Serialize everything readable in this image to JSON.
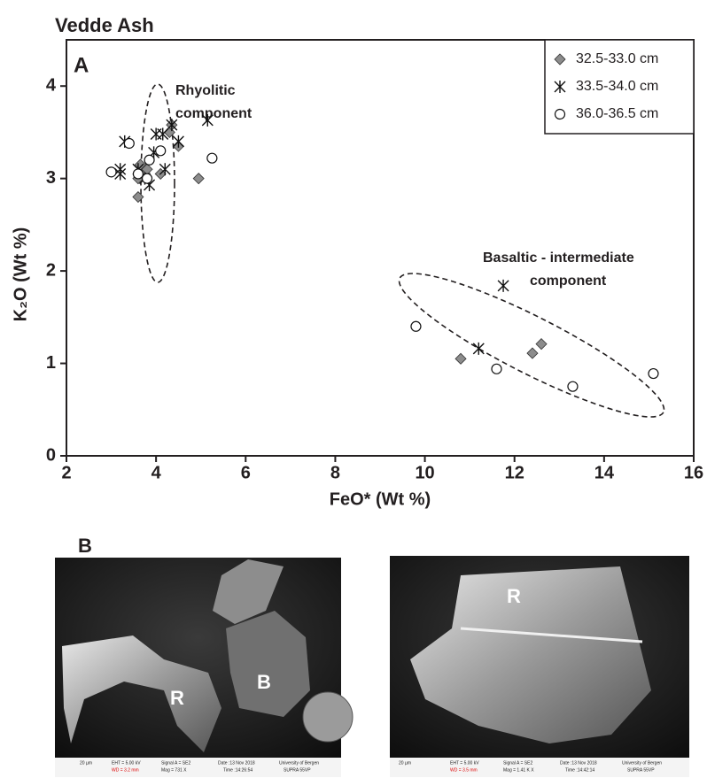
{
  "chart_data": {
    "type": "scatter",
    "title": "Vedde Ash",
    "panel_label": "A",
    "x_label": "FeO* (Wt %)",
    "y_label": "K₂O (Wt %)",
    "xlim": [
      2,
      16
    ],
    "xticks": [
      2,
      4,
      6,
      8,
      10,
      12,
      14,
      16
    ],
    "ylim": [
      0,
      4.5
    ],
    "yticks": [
      0,
      1,
      2,
      3,
      4
    ],
    "legend_position": "upper right",
    "annotations": [
      "Rhyolitic",
      "component",
      "Basaltic - intermediate",
      "component"
    ],
    "series": [
      {
        "name": "32.5-33.0 cm",
        "marker": "diamond",
        "color": "#8c8c8c",
        "x": [
          3.6,
          3.6,
          3.65,
          3.7,
          3.8,
          4.1,
          4.3,
          4.35,
          4.5,
          4.95,
          10.8,
          12.4,
          12.6
        ],
        "values": [
          2.8,
          3.0,
          3.15,
          3.05,
          3.1,
          3.05,
          3.5,
          3.58,
          3.35,
          3.0,
          1.05,
          1.11,
          1.21
        ]
      },
      {
        "name": "33.5-34.0 cm",
        "marker": "asterisk",
        "color": "#111111",
        "x": [
          3.2,
          3.2,
          3.3,
          3.6,
          3.75,
          3.85,
          3.95,
          4.0,
          4.2,
          4.15,
          4.35,
          4.5,
          5.15,
          11.2,
          11.75
        ],
        "values": [
          3.05,
          3.1,
          3.4,
          3.1,
          3.0,
          2.93,
          3.28,
          3.48,
          3.1,
          3.48,
          3.58,
          3.4,
          3.63,
          1.16,
          1.84
        ]
      },
      {
        "name": "36.0-36.5 cm",
        "marker": "circle",
        "color": "#111111",
        "x": [
          3.0,
          3.4,
          3.6,
          3.8,
          3.85,
          4.1,
          5.25,
          9.8,
          11.6,
          13.3,
          15.1
        ],
        "values": [
          3.07,
          3.38,
          3.05,
          3.0,
          3.2,
          3.3,
          3.22,
          1.4,
          0.94,
          0.75,
          0.89
        ]
      }
    ]
  },
  "figure_b": {
    "panel_label": "B",
    "images": [
      {
        "labels": [
          "R",
          "B"
        ],
        "scale": "20 µm",
        "eht": "EHT = 5.00 kV",
        "wd": "WD = 3.2 mm",
        "signal": "Signal A = SE2",
        "mag": "Mag = 731 X",
        "date": "Date :13 Nov 2018",
        "time": "Time :14:26:54",
        "org": "University of Bergen",
        "instrument": "SUPRA 55VP"
      },
      {
        "labels": [
          "R"
        ],
        "scale": "20 µm",
        "eht": "EHT = 5.00 kV",
        "wd": "WD = 3.5 mm",
        "signal": "Signal A = SE2",
        "mag": "Mag = 1.41 K X",
        "date": "Date :13 Nov 2018",
        "time": "Time :14:42:14",
        "org": "University of Bergen",
        "instrument": "SUPRA 55VP"
      }
    ]
  }
}
